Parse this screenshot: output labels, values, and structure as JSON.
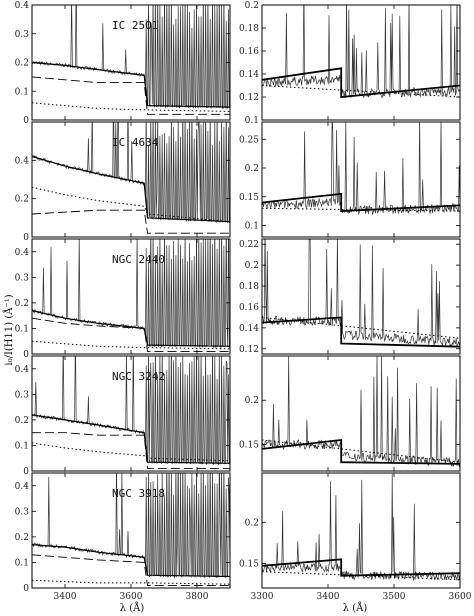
{
  "ylabel": "i₀/I(H11) (Å⁻¹)",
  "xlabel_left": "λ (Å)",
  "xlabel_right": "λ (Å)",
  "chart_data": [
    {
      "type": "line",
      "title": "IC 2501",
      "column": "left",
      "xlim": [
        3300,
        3900
      ],
      "ylim": [
        0,
        0.4
      ],
      "yticks": [
        0,
        0.1,
        0.2,
        0.3,
        0.4
      ],
      "xticks": [
        3400,
        3600,
        3800
      ],
      "series": [
        {
          "style": "solid",
          "x": [
            3300,
            3400,
            3500,
            3640,
            3650,
            3900
          ],
          "values": [
            0.2,
            0.19,
            0.175,
            0.155,
            0.05,
            0.045
          ]
        },
        {
          "style": "dashed",
          "x": [
            3300,
            3400,
            3500,
            3640,
            3650,
            3900
          ],
          "values": [
            0.15,
            0.14,
            0.13,
            0.13,
            0.02,
            0.02
          ]
        },
        {
          "style": "dotted",
          "x": [
            3300,
            3400,
            3500,
            3640,
            3650,
            3900
          ],
          "values": [
            0.06,
            0.05,
            0.04,
            0.035,
            0.035,
            0.03
          ]
        }
      ]
    },
    {
      "type": "line",
      "title": "",
      "column": "right",
      "xlim": [
        3300,
        3600
      ],
      "ylim": [
        0.1,
        0.2
      ],
      "yticks": [
        0.1,
        0.12,
        0.14,
        0.16,
        0.18,
        0.2
      ],
      "xticks": [
        3300,
        3400,
        3500,
        3600
      ],
      "series": [
        {
          "style": "solid",
          "x": [
            3300,
            3420,
            3420,
            3600
          ],
          "values": [
            0.135,
            0.145,
            0.12,
            0.13
          ]
        },
        {
          "style": "dotted",
          "x": [
            3300,
            3600
          ],
          "values": [
            0.13,
            0.12
          ]
        }
      ]
    },
    {
      "type": "line",
      "title": "IC 4634",
      "column": "left",
      "xlim": [
        3300,
        3900
      ],
      "ylim": [
        0,
        0.6
      ],
      "yticks": [
        0,
        0.2,
        0.4
      ],
      "xticks": [
        3400,
        3600,
        3800
      ],
      "series": [
        {
          "style": "solid",
          "x": [
            3300,
            3400,
            3500,
            3640,
            3650,
            3900
          ],
          "values": [
            0.42,
            0.37,
            0.33,
            0.28,
            0.1,
            0.08
          ]
        },
        {
          "style": "dashed",
          "x": [
            3300,
            3400,
            3500,
            3640,
            3650,
            3900
          ],
          "values": [
            0.12,
            0.13,
            0.14,
            0.14,
            0.02,
            0.02
          ]
        },
        {
          "style": "dotted",
          "x": [
            3300,
            3400,
            3500,
            3640,
            3650,
            3900
          ],
          "values": [
            0.26,
            0.22,
            0.19,
            0.16,
            0.12,
            0.08
          ]
        }
      ]
    },
    {
      "type": "line",
      "title": "",
      "column": "right",
      "xlim": [
        3300,
        3600
      ],
      "ylim": [
        0.08,
        0.28
      ],
      "yticks": [
        0.1,
        0.15,
        0.2,
        0.25
      ],
      "xticks": [
        3300,
        3400,
        3500,
        3600
      ],
      "series": [
        {
          "style": "solid",
          "x": [
            3300,
            3420,
            3420,
            3600
          ],
          "values": [
            0.14,
            0.155,
            0.125,
            0.135
          ]
        },
        {
          "style": "dotted",
          "x": [
            3300,
            3600
          ],
          "values": [
            0.13,
            0.125
          ]
        }
      ]
    },
    {
      "type": "line",
      "title": "NGC 2440",
      "column": "left",
      "xlim": [
        3300,
        3900
      ],
      "ylim": [
        0,
        0.45
      ],
      "yticks": [
        0,
        0.1,
        0.2,
        0.3,
        0.4
      ],
      "xticks": [
        3400,
        3600,
        3800
      ],
      "series": [
        {
          "style": "solid",
          "x": [
            3300,
            3400,
            3500,
            3640,
            3650,
            3900
          ],
          "values": [
            0.17,
            0.14,
            0.12,
            0.1,
            0.035,
            0.03
          ]
        },
        {
          "style": "dashed",
          "x": [
            3300,
            3400,
            3500,
            3640,
            3650,
            3900
          ],
          "values": [
            0.14,
            0.12,
            0.11,
            0.1,
            0.01,
            0.01
          ]
        },
        {
          "style": "dotted",
          "x": [
            3300,
            3400,
            3500,
            3640,
            3650,
            3900
          ],
          "values": [
            0.05,
            0.04,
            0.03,
            0.025,
            0.025,
            0.02
          ]
        }
      ]
    },
    {
      "type": "line",
      "title": "",
      "column": "right",
      "xlim": [
        3300,
        3600
      ],
      "ylim": [
        0.115,
        0.225
      ],
      "yticks": [
        0.12,
        0.14,
        0.16,
        0.18,
        0.2,
        0.22
      ],
      "xticks": [
        3300,
        3400,
        3500,
        3600
      ],
      "series": [
        {
          "style": "solid",
          "x": [
            3300,
            3420,
            3420,
            3600
          ],
          "values": [
            0.145,
            0.15,
            0.125,
            0.122
          ]
        },
        {
          "style": "dotted",
          "x": [
            3300,
            3600
          ],
          "values": [
            0.15,
            0.13
          ]
        }
      ]
    },
    {
      "type": "line",
      "title": "NGC 3242",
      "column": "left",
      "xlim": [
        3300,
        3900
      ],
      "ylim": [
        0,
        0.45
      ],
      "yticks": [
        0,
        0.1,
        0.2,
        0.3,
        0.4
      ],
      "xticks": [
        3400,
        3600,
        3800
      ],
      "series": [
        {
          "style": "solid",
          "x": [
            3300,
            3400,
            3500,
            3640,
            3650,
            3900
          ],
          "values": [
            0.22,
            0.2,
            0.18,
            0.15,
            0.035,
            0.03
          ]
        },
        {
          "style": "dashed",
          "x": [
            3300,
            3400,
            3500,
            3640,
            3650,
            3900
          ],
          "values": [
            0.15,
            0.15,
            0.14,
            0.14,
            0.01,
            0.01
          ]
        },
        {
          "style": "dotted",
          "x": [
            3300,
            3400,
            3500,
            3640,
            3650,
            3900
          ],
          "values": [
            0.11,
            0.09,
            0.075,
            0.06,
            0.05,
            0.04
          ]
        }
      ]
    },
    {
      "type": "line",
      "title": "",
      "column": "right",
      "xlim": [
        3300,
        3600
      ],
      "ylim": [
        0.12,
        0.25
      ],
      "yticks": [
        0.15,
        0.2
      ],
      "xticks": [
        3300,
        3400,
        3500,
        3600
      ],
      "series": [
        {
          "style": "solid",
          "x": [
            3300,
            3420,
            3420,
            3600
          ],
          "values": [
            0.145,
            0.155,
            0.13,
            0.128
          ]
        },
        {
          "style": "dotted",
          "x": [
            3300,
            3600
          ],
          "values": [
            0.155,
            0.13
          ]
        }
      ]
    },
    {
      "type": "line",
      "title": "NGC 3918",
      "column": "left",
      "xlim": [
        3300,
        3900
      ],
      "ylim": [
        0,
        0.45
      ],
      "yticks": [
        0,
        0.1,
        0.2,
        0.3,
        0.4
      ],
      "xticks": [
        3400,
        3600,
        3800
      ],
      "series": [
        {
          "style": "solid",
          "x": [
            3300,
            3400,
            3500,
            3640,
            3650,
            3900
          ],
          "values": [
            0.17,
            0.16,
            0.14,
            0.12,
            0.05,
            0.045
          ]
        },
        {
          "style": "dashed",
          "x": [
            3300,
            3400,
            3500,
            3640,
            3650,
            3900
          ],
          "values": [
            0.13,
            0.12,
            0.11,
            0.1,
            0.01,
            0.01
          ]
        },
        {
          "style": "dotted",
          "x": [
            3300,
            3400,
            3500,
            3640,
            3650,
            3900
          ],
          "values": [
            0.03,
            0.025,
            0.02,
            0.02,
            0.02,
            0.015
          ]
        }
      ]
    },
    {
      "type": "line",
      "title": "",
      "column": "right",
      "xlim": [
        3300,
        3600
      ],
      "ylim": [
        0.12,
        0.26
      ],
      "yticks": [
        0.15,
        0.2
      ],
      "xticks": [
        3300,
        3400,
        3500,
        3600
      ],
      "series": [
        {
          "style": "solid",
          "x": [
            3300,
            3420,
            3420,
            3600
          ],
          "values": [
            0.147,
            0.155,
            0.135,
            0.138
          ]
        },
        {
          "style": "dotted",
          "x": [
            3300,
            3600
          ],
          "values": [
            0.14,
            0.13
          ]
        }
      ]
    }
  ]
}
